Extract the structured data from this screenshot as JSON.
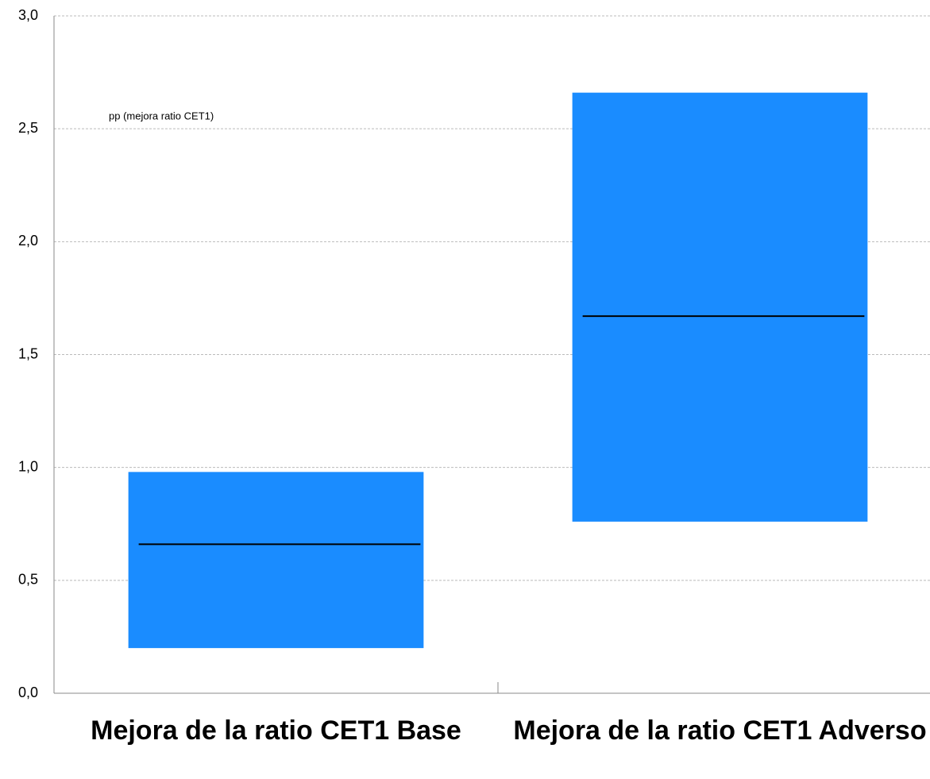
{
  "chart_data": {
    "type": "range",
    "annotation": "pp (mejora ratio CET1)",
    "categories": [
      "Mejora de la ratio CET1 Base",
      "Mejora de la ratio CET1 Adverso"
    ],
    "low": [
      0.2,
      0.76
    ],
    "high": [
      0.98,
      2.66
    ],
    "median": [
      0.66,
      1.67
    ],
    "color": "#1a8cff",
    "median_color": "#000000",
    "ylim": [
      0,
      3
    ],
    "yticks": [
      {
        "value": 0,
        "label": "0,0"
      },
      {
        "value": 0.5,
        "label": "0,5"
      },
      {
        "value": 1,
        "label": "1,0"
      },
      {
        "value": 1.5,
        "label": "1,5"
      },
      {
        "value": 2,
        "label": "2,0"
      },
      {
        "value": 2.5,
        "label": "2,5"
      },
      {
        "value": 3,
        "label": "3,0"
      }
    ],
    "grid": true
  }
}
